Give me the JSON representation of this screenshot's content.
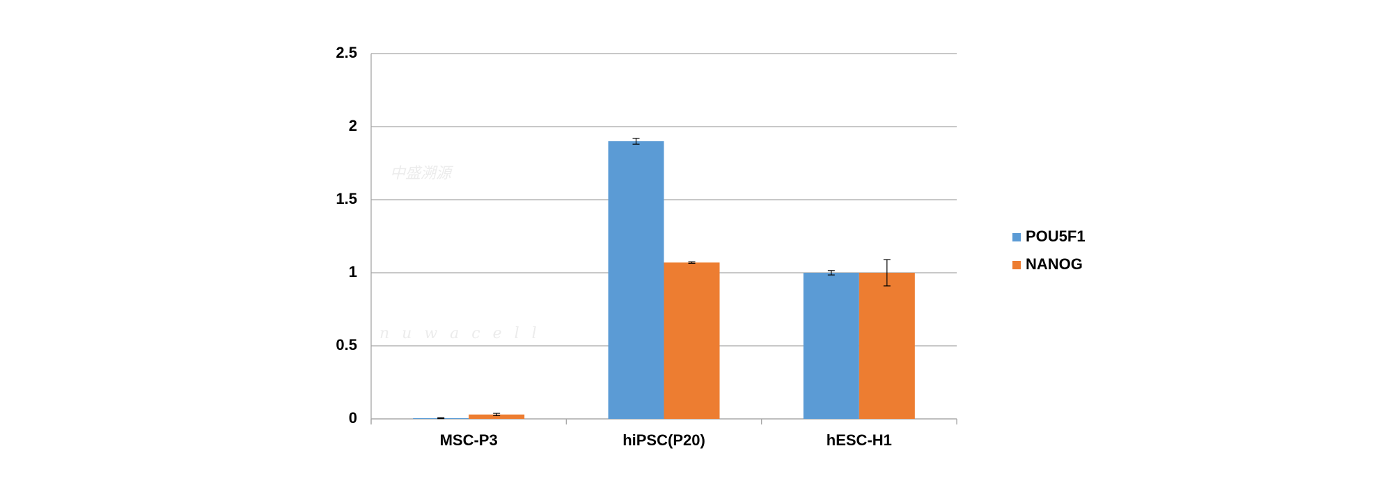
{
  "chart_data": {
    "type": "bar",
    "watermark": [
      "中盛溯源",
      "nuwacell"
    ],
    "categories": [
      "MSC-P3",
      "hiPSC(P20)",
      "hESC-H1"
    ],
    "series": [
      {
        "name": "POU5F1",
        "color": "#5b9bd5",
        "values": [
          0.005,
          1.9,
          1.0
        ],
        "errors": [
          0.003,
          0.02,
          0.015
        ]
      },
      {
        "name": "NANOG",
        "color": "#ed7d31",
        "values": [
          0.03,
          1.07,
          1.0
        ],
        "errors": [
          0.008,
          0.005,
          0.09
        ]
      }
    ],
    "ylim": [
      0,
      2.5
    ],
    "yticks": [
      0,
      0.5,
      1,
      1.5,
      2,
      2.5
    ],
    "grid": true,
    "legend": "right"
  }
}
